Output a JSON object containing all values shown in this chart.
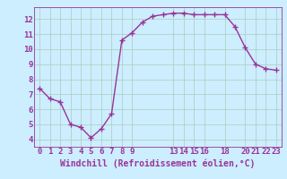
{
  "x": [
    0,
    1,
    2,
    3,
    4,
    5,
    6,
    7,
    8,
    9,
    10,
    11,
    12,
    13,
    14,
    15,
    16,
    17,
    18,
    19,
    20,
    21,
    22,
    23
  ],
  "y": [
    7.4,
    6.7,
    6.5,
    5.0,
    4.8,
    4.1,
    4.7,
    5.7,
    10.6,
    11.1,
    11.8,
    12.2,
    12.3,
    12.4,
    12.4,
    12.3,
    12.3,
    12.3,
    12.3,
    11.5,
    10.1,
    9.0,
    8.7,
    8.6
  ],
  "line_color": "#993399",
  "marker": "+",
  "markersize": 4,
  "linewidth": 1.0,
  "xlabel": "Windchill (Refroidissement éolien,°C)",
  "xlim": [
    -0.5,
    23.5
  ],
  "ylim": [
    3.5,
    12.8
  ],
  "xticks": [
    0,
    1,
    2,
    3,
    4,
    5,
    6,
    7,
    8,
    9,
    13,
    14,
    15,
    16,
    18,
    20,
    21,
    22,
    23
  ],
  "yticks": [
    4,
    5,
    6,
    7,
    8,
    9,
    10,
    11,
    12
  ],
  "plot_bg_color": "#cceeff",
  "fig_bg_color": "#cceeff",
  "grid_color": "#aaccbb",
  "label_color": "#993399",
  "tick_color": "#993399",
  "xlabel_fontsize": 7,
  "tick_fontsize": 6.5
}
